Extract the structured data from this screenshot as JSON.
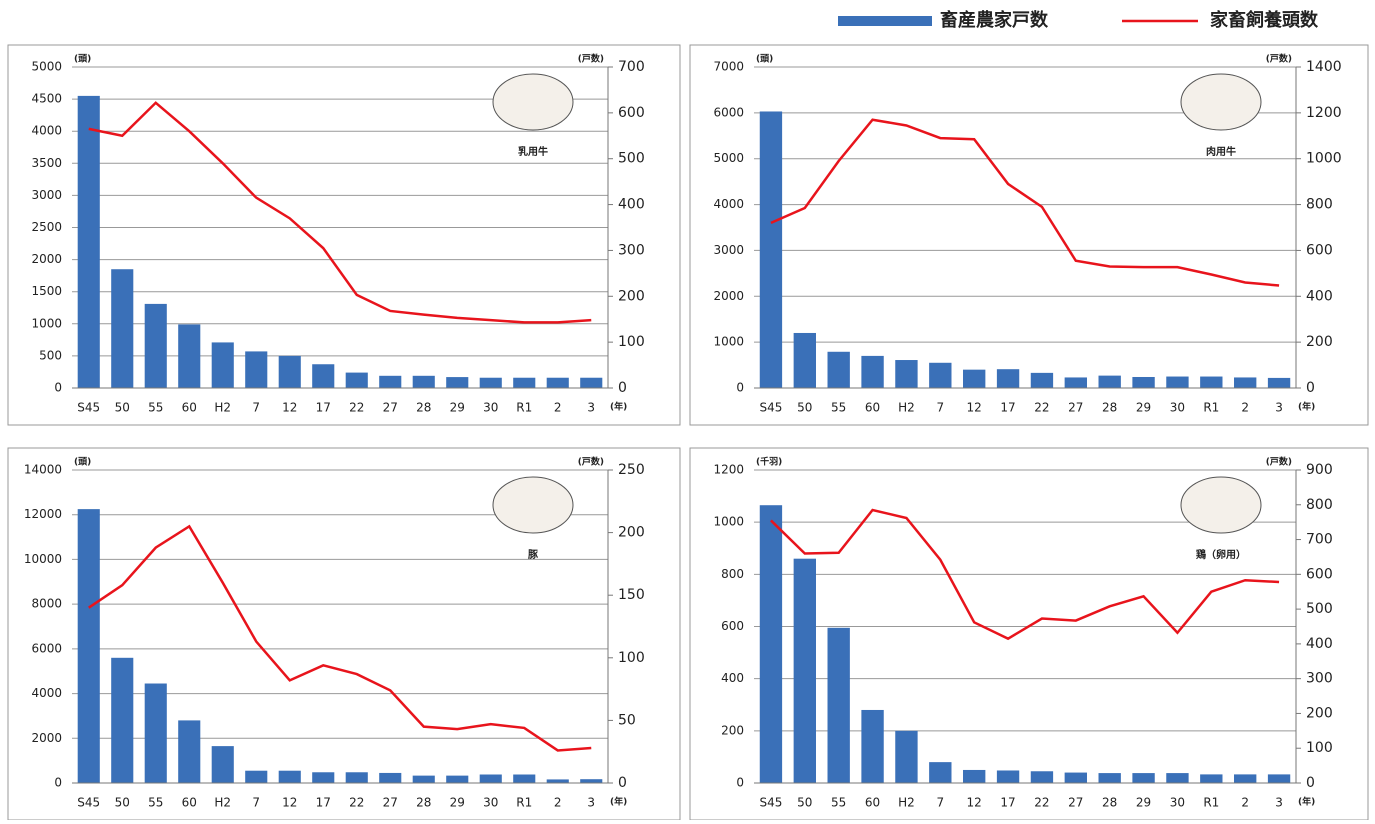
{
  "legend": [
    "畜産農家戸数",
    "家畜飼養頭数"
  ],
  "chart_data": [
    {
      "type": "combo",
      "caption": "乳用牛",
      "y_unit_label": "(頭)",
      "y2_unit_label": "(戸数)",
      "x_unit_label": "(年)",
      "categories": [
        "S45",
        "50",
        "55",
        "60",
        "H2",
        "7",
        "12",
        "17",
        "22",
        "27",
        "28",
        "29",
        "30",
        "R1",
        "2",
        "3"
      ],
      "ylim": [
        0,
        5000
      ],
      "yticks": [
        0,
        500,
        1000,
        1500,
        2000,
        2500,
        3000,
        3500,
        4000,
        4500,
        5000
      ],
      "y2lim": [
        0,
        700
      ],
      "y2ticks": [
        0,
        100,
        200,
        300,
        400,
        500,
        600,
        700
      ],
      "grid": true,
      "series": [
        {
          "type": "bar",
          "color": "#3a70b8",
          "values": [
            4550,
            1850,
            1310,
            990,
            710,
            570,
            500,
            370,
            240,
            190,
            190,
            170,
            160,
            160,
            160,
            160
          ]
        },
        {
          "type": "line",
          "axis": "y2",
          "color": "#e8141c",
          "values": [
            565,
            550,
            622,
            560,
            490,
            415,
            370,
            305,
            203,
            168,
            160,
            153,
            148,
            143,
            143,
            148
          ]
        }
      ]
    },
    {
      "type": "combo",
      "caption": "肉用牛",
      "y_unit_label": "(頭)",
      "y2_unit_label": "(戸数)",
      "x_unit_label": "(年)",
      "categories": [
        "S45",
        "50",
        "55",
        "60",
        "H2",
        "7",
        "12",
        "17",
        "22",
        "27",
        "28",
        "29",
        "30",
        "R1",
        "2",
        "3"
      ],
      "ylim": [
        0,
        7000
      ],
      "yticks": [
        0,
        1000,
        2000,
        3000,
        4000,
        5000,
        6000,
        7000
      ],
      "y2lim": [
        0,
        1400
      ],
      "y2ticks": [
        0,
        200,
        400,
        600,
        800,
        1000,
        1200,
        1400
      ],
      "grid": true,
      "series": [
        {
          "type": "bar",
          "color": "#3a70b8",
          "values": [
            6030,
            1200,
            790,
            700,
            610,
            550,
            400,
            410,
            330,
            230,
            270,
            240,
            250,
            250,
            230,
            220
          ]
        },
        {
          "type": "line",
          "axis": "y2",
          "color": "#e8141c",
          "values": [
            720,
            785,
            990,
            1170,
            1145,
            1090,
            1085,
            890,
            790,
            555,
            530,
            527,
            527,
            495,
            460,
            447
          ]
        }
      ]
    },
    {
      "type": "combo",
      "caption": "豚",
      "y_unit_label": "(頭)",
      "y2_unit_label": "(戸数)",
      "x_unit_label": "(年)",
      "categories": [
        "S45",
        "50",
        "55",
        "60",
        "H2",
        "7",
        "12",
        "17",
        "22",
        "27",
        "28",
        "29",
        "30",
        "R1",
        "2",
        "3"
      ],
      "ylim": [
        0,
        14000
      ],
      "yticks": [
        0,
        2000,
        4000,
        6000,
        8000,
        10000,
        12000,
        14000
      ],
      "y2lim": [
        0,
        250
      ],
      "y2ticks": [
        0,
        50,
        100,
        150,
        200,
        250
      ],
      "grid": true,
      "series": [
        {
          "type": "bar",
          "color": "#3a70b8",
          "values": [
            12250,
            5600,
            4450,
            2800,
            1650,
            550,
            550,
            480,
            480,
            450,
            330,
            330,
            380,
            380,
            160,
            170
          ]
        },
        {
          "type": "line",
          "axis": "y2",
          "color": "#e8141c",
          "values": [
            140,
            158,
            188,
            205,
            160,
            113,
            82,
            94,
            87,
            74,
            45,
            43,
            47,
            44,
            26,
            28
          ]
        }
      ]
    },
    {
      "type": "combo",
      "caption": "鶏（卵用）",
      "y_unit_label": "(千羽)",
      "y2_unit_label": "(戸数)",
      "x_unit_label": "(年)",
      "categories": [
        "S45",
        "50",
        "55",
        "60",
        "H2",
        "7",
        "12",
        "17",
        "22",
        "27",
        "28",
        "29",
        "30",
        "R1",
        "2",
        "3"
      ],
      "ylim": [
        0,
        1200
      ],
      "yticks": [
        0,
        200,
        400,
        600,
        800,
        1000,
        1200
      ],
      "y2lim": [
        0,
        900
      ],
      "y2ticks": [
        0,
        100,
        200,
        300,
        400,
        500,
        600,
        700,
        800,
        900
      ],
      "grid": true,
      "series": [
        {
          "type": "bar",
          "color": "#3a70b8",
          "values": [
            1065,
            860,
            595,
            280,
            200,
            80,
            50,
            48,
            45,
            40,
            38,
            38,
            38,
            33,
            33,
            33
          ]
        },
        {
          "type": "line",
          "axis": "y2",
          "color": "#e8141c",
          "values": [
            755,
            660,
            662,
            785,
            762,
            642,
            462,
            415,
            473,
            467,
            508,
            537,
            432,
            550,
            583,
            578
          ]
        }
      ]
    }
  ]
}
